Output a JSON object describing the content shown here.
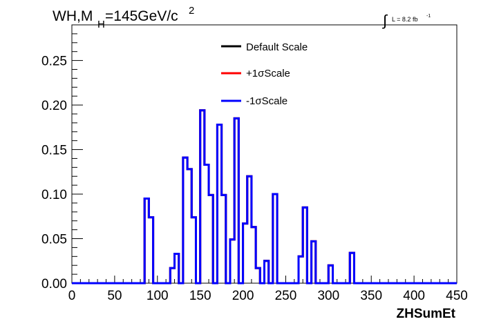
{
  "chart_data": {
    "type": "histogram",
    "title_main": "WH,M",
    "title_sub": "H",
    "title_rest": "=145GeV/c",
    "title_sup": "2",
    "lumi_text": "L = 8.2 fb",
    "lumi_sup": "-1",
    "xlabel": "ZHSumEt",
    "ylabel": "",
    "xlim": [
      0,
      450
    ],
    "ylim": [
      0,
      0.29
    ],
    "x_ticks": [
      0,
      50,
      100,
      150,
      200,
      250,
      300,
      350,
      400,
      450
    ],
    "x_tick_labels": [
      "0",
      "50",
      "100",
      "150",
      "200",
      "250",
      "300",
      "350",
      "400",
      "450"
    ],
    "y_ticks": [
      0,
      0.05,
      0.1,
      0.15,
      0.2,
      0.25
    ],
    "y_tick_labels": [
      "0.00",
      "0.05",
      "0.10",
      "0.15",
      "0.20",
      "0.25"
    ],
    "bin_edges": [
      0,
      5,
      10,
      15,
      20,
      25,
      30,
      35,
      40,
      45,
      50,
      55,
      60,
      65,
      70,
      75,
      80,
      85,
      90,
      95,
      100,
      105,
      110,
      115,
      120,
      125,
      130,
      135,
      140,
      145,
      150,
      155,
      160,
      165,
      170,
      175,
      180,
      185,
      190,
      195,
      200,
      205,
      210,
      215,
      220,
      225,
      230,
      235,
      240,
      245,
      250,
      255,
      260,
      265,
      270,
      275,
      280,
      285,
      290,
      295,
      300,
      305,
      310,
      315,
      320,
      325,
      330,
      335,
      340,
      345,
      350,
      355,
      360,
      365,
      370,
      375,
      380,
      385,
      390,
      395,
      400,
      405,
      410,
      415,
      420,
      425,
      430,
      435,
      440,
      445,
      450
    ],
    "legend": [
      {
        "label": "Default Scale",
        "color": "#000000"
      },
      {
        "label": "+1σScale",
        "color": "#ff0000"
      },
      {
        "label": "-1σScale",
        "color": "#0000ff"
      }
    ],
    "legend_position": "top-center",
    "series": [
      {
        "name": "Default Scale",
        "color": "#000000",
        "values": [
          0,
          0,
          0,
          0,
          0,
          0,
          0,
          0,
          0,
          0,
          0,
          0,
          0,
          0,
          0,
          0,
          0,
          0.095,
          0.074,
          0,
          0,
          0,
          0,
          0.017,
          0.033,
          0,
          0.141,
          0.128,
          0.074,
          0,
          0.194,
          0.133,
          0.099,
          0,
          0.178,
          0.099,
          0,
          0.049,
          0.185,
          0,
          0.067,
          0.12,
          0.063,
          0.017,
          0,
          0.025,
          0,
          0.1,
          0,
          0,
          0,
          0,
          0,
          0.03,
          0.085,
          0,
          0.047,
          0,
          0,
          0,
          0.02,
          0,
          0,
          0,
          0,
          0.034,
          0,
          0,
          0,
          0,
          0,
          0,
          0,
          0,
          0,
          0,
          0,
          0,
          0,
          0,
          0,
          0,
          0,
          0,
          0,
          0,
          0,
          0,
          0,
          0
        ]
      },
      {
        "name": "+1σScale",
        "color": "#ff0000",
        "values": [
          0,
          0,
          0,
          0,
          0,
          0,
          0,
          0,
          0,
          0,
          0,
          0,
          0,
          0,
          0,
          0,
          0,
          0.095,
          0.074,
          0,
          0,
          0,
          0,
          0.017,
          0.033,
          0,
          0.141,
          0.128,
          0.074,
          0,
          0.194,
          0.133,
          0.099,
          0,
          0.178,
          0.099,
          0,
          0.049,
          0.185,
          0,
          0.067,
          0.12,
          0.063,
          0.017,
          0,
          0.025,
          0,
          0.1,
          0,
          0,
          0,
          0,
          0,
          0.03,
          0.085,
          0,
          0.047,
          0,
          0,
          0,
          0.02,
          0,
          0,
          0,
          0,
          0.034,
          0,
          0,
          0,
          0,
          0,
          0,
          0,
          0,
          0,
          0,
          0,
          0,
          0,
          0,
          0,
          0,
          0,
          0,
          0,
          0,
          0,
          0,
          0,
          0
        ]
      },
      {
        "name": "-1σScale",
        "color": "#0000ff",
        "values": [
          0,
          0,
          0,
          0,
          0,
          0,
          0,
          0,
          0,
          0,
          0,
          0,
          0,
          0,
          0,
          0,
          0,
          0.095,
          0.074,
          0,
          0,
          0,
          0,
          0.017,
          0.033,
          0,
          0.141,
          0.128,
          0.074,
          0,
          0.194,
          0.133,
          0.099,
          0,
          0.178,
          0.099,
          0,
          0.049,
          0.185,
          0,
          0.067,
          0.12,
          0.063,
          0.017,
          0,
          0.025,
          0,
          0.1,
          0,
          0,
          0,
          0,
          0,
          0.03,
          0.085,
          0,
          0.047,
          0,
          0,
          0,
          0.02,
          0,
          0,
          0,
          0,
          0.034,
          0,
          0,
          0,
          0,
          0,
          0,
          0,
          0,
          0,
          0,
          0,
          0,
          0,
          0,
          0,
          0,
          0,
          0,
          0,
          0,
          0,
          0,
          0,
          0
        ]
      }
    ]
  }
}
